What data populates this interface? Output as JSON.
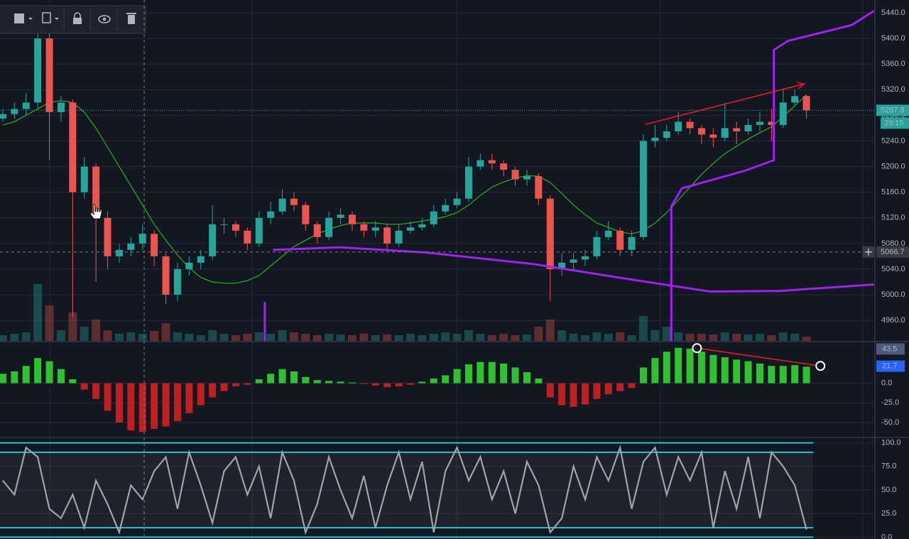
{
  "chart_data": [
    {
      "type": "candlestick",
      "xlim": [
        -0.24,
        74.88
      ],
      "ylim": [
        4928,
        5460
      ],
      "yticks": [
        {
          "value": 4960,
          "label": "4960.0"
        },
        {
          "value": 5000,
          "label": "5000.0"
        },
        {
          "value": 5040,
          "label": "5040.0"
        },
        {
          "value": 5080,
          "label": "5080.0"
        },
        {
          "value": 5120,
          "label": "5120.0"
        },
        {
          "value": 5160,
          "label": "5160.0"
        },
        {
          "value": 5200,
          "label": "5200.0"
        },
        {
          "value": 5240,
          "label": "5240.0"
        },
        {
          "value": 5280,
          "label": "5280.0"
        },
        {
          "value": 5320,
          "label": "5320.0"
        },
        {
          "value": 5360,
          "label": "5360.0"
        },
        {
          "value": 5400,
          "label": "5400.0"
        },
        {
          "value": 5440,
          "label": "5440.0"
        }
      ],
      "grid": true,
      "colors": {
        "up": "#26a69a",
        "down": "#ef5350"
      },
      "open": [
        5275,
        5282,
        5290,
        5300,
        5400,
        5285,
        5300,
        5160,
        5200,
        5120,
        5060,
        5070,
        5080,
        5095,
        5060,
        5000,
        5040,
        5050,
        5060,
        5110,
        5110,
        5100,
        5080,
        5120,
        5130,
        5150,
        5140,
        5110,
        5090,
        5120,
        5125,
        5110,
        5100,
        5105,
        5080,
        5100,
        5105,
        5110,
        5130,
        5140,
        5150,
        5200,
        5210,
        5205,
        5195,
        5180,
        5185,
        5150,
        5040,
        5050,
        5055,
        5060,
        5090,
        5100,
        5070,
        5090,
        5240,
        5245,
        5255,
        5270,
        5260,
        5250,
        5245,
        5260,
        5255,
        5265,
        5270,
        5265,
        5300,
        5310
      ],
      "high": [
        5290,
        5300,
        5315,
        5445,
        5410,
        5310,
        5305,
        5215,
        5205,
        5130,
        5080,
        5090,
        5110,
        5100,
        5065,
        5050,
        5060,
        5070,
        5140,
        5120,
        5115,
        5105,
        5130,
        5145,
        5165,
        5160,
        5145,
        5115,
        5130,
        5135,
        5130,
        5115,
        5115,
        5110,
        5110,
        5115,
        5120,
        5140,
        5150,
        5160,
        5215,
        5220,
        5220,
        5210,
        5200,
        5195,
        5190,
        5155,
        5065,
        5065,
        5070,
        5100,
        5115,
        5105,
        5100,
        5250,
        5265,
        5265,
        5285,
        5275,
        5265,
        5260,
        5300,
        5270,
        5275,
        5285,
        5290,
        5320,
        5320,
        5312
      ],
      "low": [
        5270,
        5275,
        5280,
        5290,
        5210,
        5270,
        4965,
        5150,
        5020,
        5040,
        5050,
        5060,
        5070,
        5045,
        4985,
        4990,
        5030,
        5040,
        5055,
        5095,
        5090,
        5070,
        5075,
        5110,
        5125,
        5130,
        5100,
        5080,
        5085,
        5110,
        5100,
        5090,
        5090,
        5070,
        5075,
        5095,
        5100,
        5105,
        5125,
        5135,
        5145,
        5195,
        5195,
        5185,
        5170,
        5170,
        5140,
        4990,
        5030,
        5040,
        5045,
        5055,
        5085,
        5060,
        5060,
        5085,
        5230,
        5240,
        5250,
        5250,
        5235,
        5230,
        5240,
        5235,
        5250,
        5255,
        5240,
        5260,
        5295,
        5275
      ],
      "close": [
        5282,
        5290,
        5300,
        5400,
        5285,
        5300,
        5160,
        5200,
        5120,
        5060,
        5070,
        5080,
        5095,
        5060,
        5000,
        5040,
        5050,
        5060,
        5110,
        5110,
        5100,
        5080,
        5120,
        5130,
        5150,
        5140,
        5110,
        5090,
        5120,
        5125,
        5110,
        5100,
        5105,
        5080,
        5100,
        5105,
        5110,
        5130,
        5140,
        5150,
        5200,
        5210,
        5205,
        5195,
        5180,
        5185,
        5150,
        5040,
        5050,
        5055,
        5060,
        5090,
        5100,
        5070,
        5090,
        5240,
        5245,
        5255,
        5270,
        5260,
        5250,
        5245,
        5260,
        5255,
        5265,
        5270,
        5265,
        5300,
        5310,
        5288
      ],
      "volume": [
        8,
        10,
        12,
        80,
        50,
        15,
        40,
        20,
        30,
        15,
        10,
        12,
        10,
        14,
        25,
        12,
        10,
        8,
        15,
        10,
        8,
        10,
        12,
        10,
        15,
        12,
        10,
        8,
        10,
        9,
        8,
        10,
        8,
        9,
        8,
        10,
        8,
        10,
        12,
        10,
        15,
        10,
        8,
        10,
        8,
        9,
        20,
        30,
        15,
        10,
        8,
        12,
        10,
        12,
        8,
        35,
        15,
        20,
        12,
        10,
        10,
        9,
        12,
        10,
        9,
        10,
        8,
        12,
        10,
        6
      ],
      "overlays": [
        {
          "color": "#22b522",
          "values": [
            5265,
            5270,
            5280,
            5290,
            5300,
            5303,
            5300,
            5285,
            5260,
            5230,
            5200,
            5170,
            5140,
            5110,
            5085,
            5062,
            5042,
            5027,
            5020,
            5018,
            5018,
            5022,
            5030,
            5045,
            5060,
            5075,
            5085,
            5095,
            5102,
            5108,
            5112,
            5112,
            5112,
            5110,
            5110,
            5112,
            5115,
            5118,
            5122,
            5128,
            5140,
            5155,
            5168,
            5176,
            5182,
            5186,
            5185,
            5175,
            5158,
            5140,
            5125,
            5112,
            5105,
            5098,
            5095,
            5100,
            5112,
            5128,
            5148,
            5168,
            5188,
            5205,
            5220,
            5232,
            5243,
            5253,
            5262,
            5278,
            5295,
            5312
          ]
        }
      ],
      "lines": [
        {
          "color": "#a020f0",
          "x": [
            23.2,
            29,
            36.3,
            45.5,
            54.6,
            60.7,
            66.8,
            74.8
          ],
          "y": [
            5070,
            5074,
            5066,
            5048,
            5022,
            5005,
            5006,
            5016
          ]
        },
        {
          "color": "#a020f0",
          "x": [
            57.4,
            57.4,
            58.3,
            63.8,
            66.2,
            66.2,
            67.4,
            72.9,
            74.8
          ],
          "y": [
            4928,
            5138,
            5166,
            5194,
            5210,
            5382,
            5396,
            5421,
            5443
          ]
        },
        {
          "color": "#a020f0",
          "x": [
            22.5,
            22.5
          ],
          "y": [
            4928,
            4989
          ]
        },
        {
          "color": "#e0201f",
          "x": [
            55.2,
            68.8
          ],
          "y": [
            5266,
            5329
          ],
          "arrow": true
        }
      ],
      "last_price": 5287.8,
      "countdown": "29:15",
      "crosshair": {
        "x": 12.14,
        "y": 5066.7
      }
    },
    {
      "type": "bar",
      "xlim": [
        -0.24,
        74.88
      ],
      "ylim": [
        -68,
        52
      ],
      "yticks": [
        {
          "value": 0,
          "label": "0.0"
        },
        {
          "value": -25,
          "label": "-25.0"
        },
        {
          "value": -50,
          "label": "-50.0"
        }
      ],
      "colors": {
        "up": "#2fc22f",
        "down": "#c01f1f"
      },
      "values": [
        12,
        15,
        22,
        32,
        28,
        18,
        5,
        -8,
        -20,
        -35,
        -50,
        -60,
        -62,
        -58,
        -55,
        -48,
        -38,
        -28,
        -18,
        -10,
        -4,
        -2,
        5,
        12,
        18,
        15,
        8,
        4,
        3,
        2,
        1,
        -1,
        -3,
        -5,
        -4,
        -2,
        2,
        6,
        10,
        18,
        24,
        27,
        27,
        25,
        20,
        14,
        6,
        -18,
        -28,
        -30,
        -27,
        -20,
        -14,
        -10,
        -6,
        20,
        32,
        40,
        45,
        44,
        40,
        36,
        33,
        30,
        28,
        25,
        22,
        22,
        23,
        21
      ],
      "value_badges": [
        {
          "value": 43.5,
          "color": "#4c5b7c"
        },
        {
          "value": 21.7,
          "color": "#2962ff"
        }
      ],
      "lines": [
        {
          "color": "#e0201f",
          "x": [
            59.6,
            70.2
          ],
          "y": [
            44.6,
            22
          ],
          "handles": true
        }
      ]
    },
    {
      "type": "line",
      "xlim": [
        -0.24,
        74.88
      ],
      "ylim": [
        -2,
        105
      ],
      "yticks": [
        {
          "value": 0,
          "label": "0.0"
        },
        {
          "value": 25,
          "label": "25.0"
        },
        {
          "value": 50,
          "label": "50.0"
        },
        {
          "value": 75,
          "label": "75.0"
        },
        {
          "value": 100,
          "label": "100.0"
        }
      ],
      "color": "#a3a3a3",
      "levels": [
        100,
        90,
        10,
        0
      ],
      "level_color": "#22c4d4",
      "values": [
        60,
        45,
        95,
        85,
        30,
        20,
        45,
        10,
        60,
        35,
        5,
        55,
        40,
        70,
        85,
        30,
        90,
        55,
        15,
        70,
        85,
        45,
        75,
        20,
        90,
        60,
        5,
        35,
        85,
        50,
        20,
        65,
        10,
        55,
        90,
        40,
        80,
        5,
        70,
        95,
        60,
        85,
        40,
        70,
        25,
        80,
        55,
        5,
        20,
        75,
        40,
        85,
        60,
        95,
        30,
        80,
        95,
        45,
        85,
        60,
        90,
        10,
        70,
        30,
        85,
        20,
        90,
        75,
        55,
        8
      ]
    }
  ]
}
